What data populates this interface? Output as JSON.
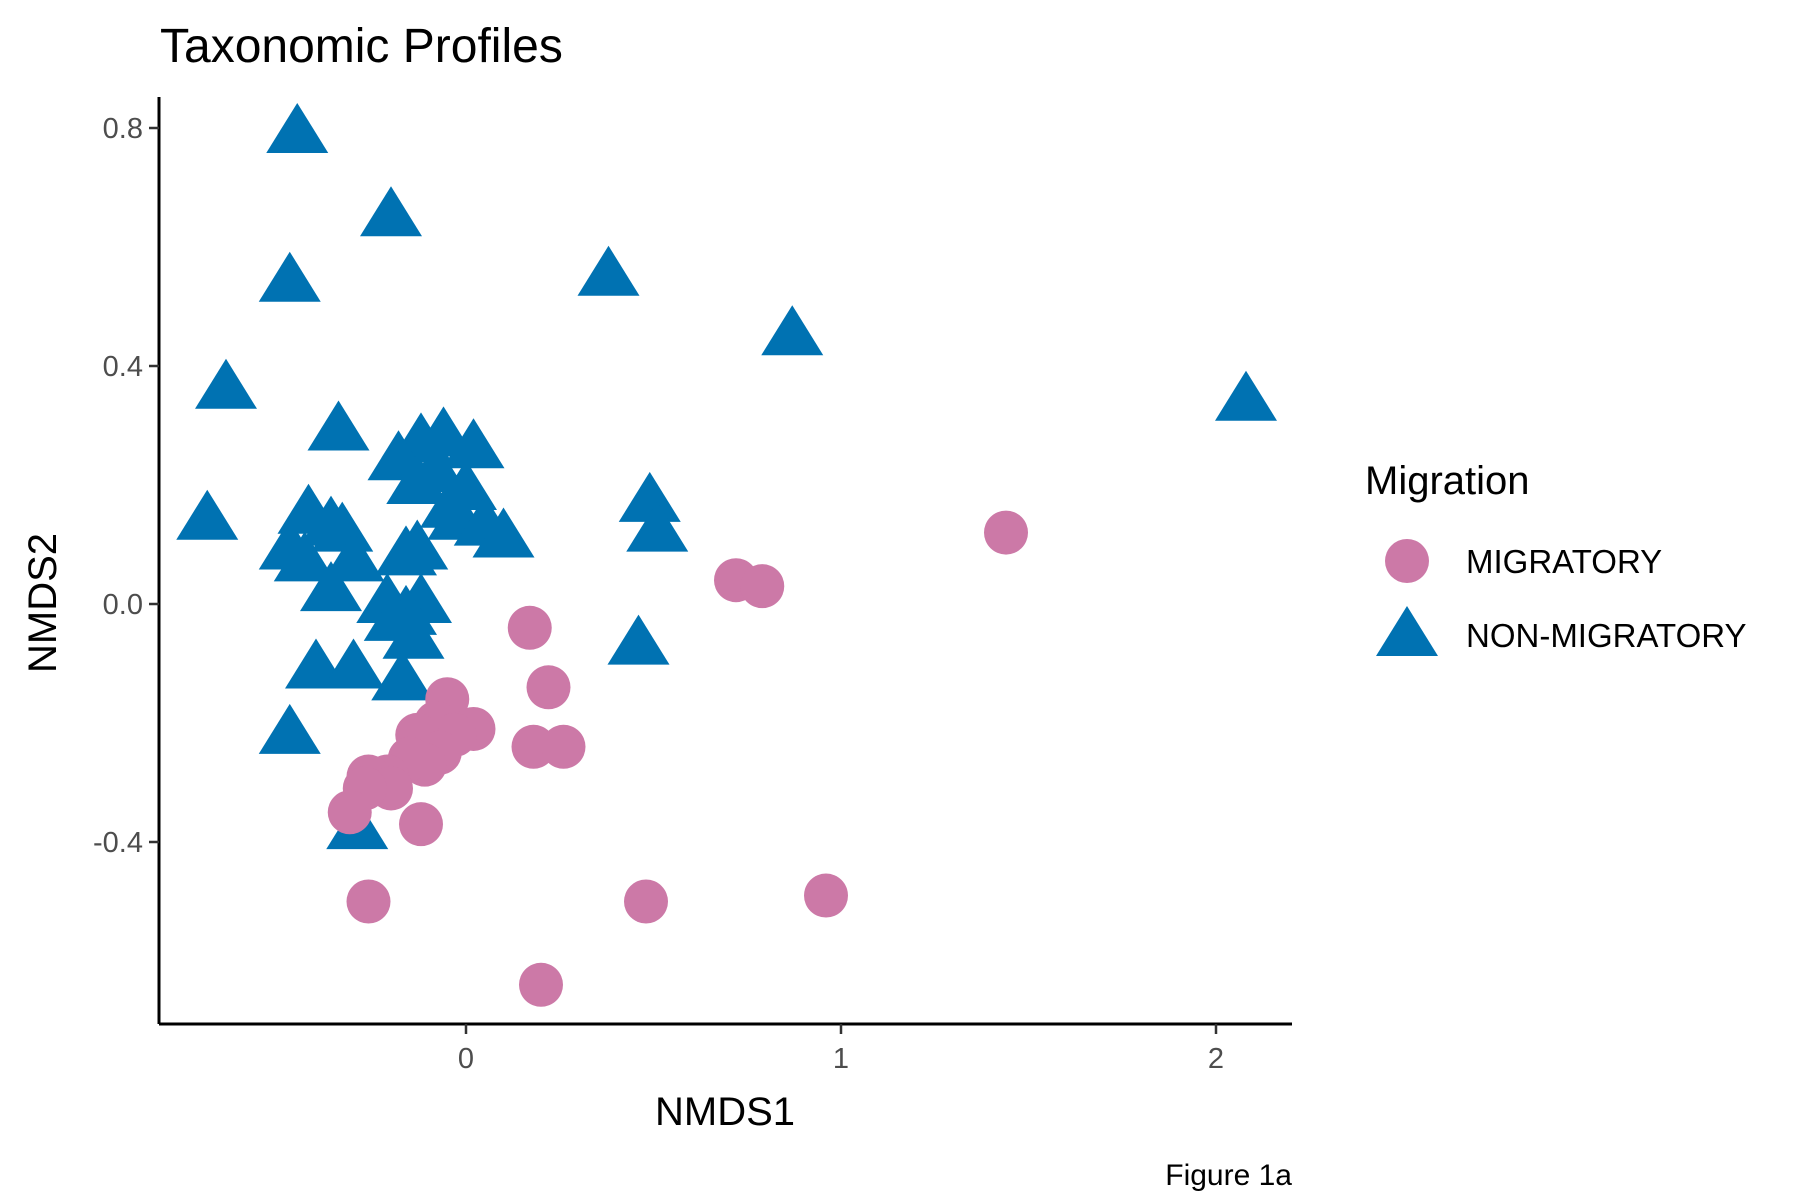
{
  "chart_data": {
    "type": "scatter",
    "title": "Taxonomic Profiles",
    "xlabel": "NMDS1",
    "ylabel": "NMDS2",
    "caption": "Figure 1a",
    "xlim": [
      -0.82,
      2.2
    ],
    "ylim": [
      -0.72,
      0.85
    ],
    "x_ticks": [
      0,
      1,
      2
    ],
    "x_tick_labels": [
      "0",
      "1",
      "2"
    ],
    "y_ticks": [
      -0.4,
      0.0,
      0.4,
      0.8
    ],
    "y_tick_labels": [
      "-0.4",
      "0.0",
      "0.4",
      "0.8"
    ],
    "grid": false,
    "legend": {
      "title": "Migration",
      "position": "right"
    },
    "series": [
      {
        "name": "MIGRATORY",
        "marker": "circle",
        "color": "#CC79A7",
        "points": [
          [
            1.44,
            0.12
          ],
          [
            0.72,
            0.04
          ],
          [
            0.79,
            0.03
          ],
          [
            0.17,
            -0.04
          ],
          [
            0.22,
            -0.14
          ],
          [
            -0.05,
            -0.16
          ],
          [
            0.02,
            -0.21
          ],
          [
            -0.08,
            -0.2
          ],
          [
            -0.03,
            -0.22
          ],
          [
            -0.13,
            -0.22
          ],
          [
            -0.07,
            -0.25
          ],
          [
            -0.11,
            -0.27
          ],
          [
            -0.15,
            -0.26
          ],
          [
            0.18,
            -0.24
          ],
          [
            0.26,
            -0.24
          ],
          [
            -0.21,
            -0.29
          ],
          [
            -0.26,
            -0.29
          ],
          [
            -0.2,
            -0.31
          ],
          [
            -0.27,
            -0.31
          ],
          [
            -0.31,
            -0.35
          ],
          [
            -0.12,
            -0.37
          ],
          [
            -0.26,
            -0.5
          ],
          [
            0.48,
            -0.5
          ],
          [
            0.96,
            -0.49
          ],
          [
            0.2,
            -0.64
          ]
        ]
      },
      {
        "name": "NON-MIGRATORY",
        "marker": "triangle",
        "color": "#0072B2",
        "points": [
          [
            -0.45,
            0.79
          ],
          [
            -0.2,
            0.65
          ],
          [
            -0.47,
            0.54
          ],
          [
            0.38,
            0.55
          ],
          [
            0.87,
            0.45
          ],
          [
            2.08,
            0.34
          ],
          [
            -0.64,
            0.36
          ],
          [
            -0.34,
            0.29
          ],
          [
            -0.12,
            0.27
          ],
          [
            -0.06,
            0.28
          ],
          [
            0.02,
            0.26
          ],
          [
            -0.18,
            0.24
          ],
          [
            -0.08,
            0.22
          ],
          [
            -0.13,
            0.2
          ],
          [
            0.0,
            0.19
          ],
          [
            -0.04,
            0.16
          ],
          [
            -0.42,
            0.15
          ],
          [
            -0.36,
            0.13
          ],
          [
            -0.33,
            0.12
          ],
          [
            -0.02,
            0.14
          ],
          [
            0.05,
            0.13
          ],
          [
            -0.69,
            0.14
          ],
          [
            0.49,
            0.17
          ],
          [
            0.51,
            0.12
          ],
          [
            0.1,
            0.11
          ],
          [
            -0.47,
            0.09
          ],
          [
            -0.43,
            0.07
          ],
          [
            -0.3,
            0.07
          ],
          [
            -0.16,
            0.08
          ],
          [
            -0.13,
            0.09
          ],
          [
            -0.36,
            0.02
          ],
          [
            -0.21,
            0.0
          ],
          [
            -0.12,
            0.0
          ],
          [
            -0.16,
            -0.02
          ],
          [
            -0.19,
            -0.03
          ],
          [
            -0.14,
            -0.06
          ],
          [
            0.46,
            -0.07
          ],
          [
            -0.4,
            -0.11
          ],
          [
            -0.3,
            -0.11
          ],
          [
            -0.17,
            -0.13
          ],
          [
            -0.47,
            -0.22
          ],
          [
            -0.29,
            -0.38
          ]
        ]
      }
    ]
  }
}
